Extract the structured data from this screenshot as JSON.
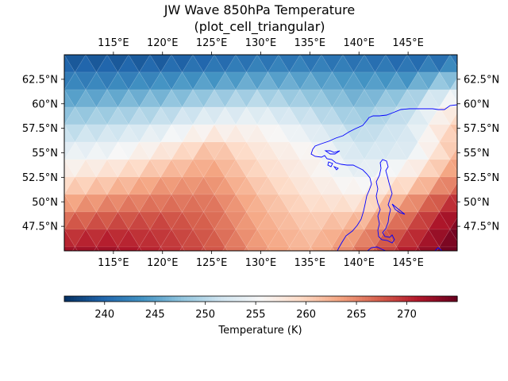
{
  "chart_data": {
    "type": "heatmap",
    "title": "JW Wave 850hPa Temperature",
    "subtitle": "(plot_cell_triangular)",
    "x_axis": {
      "range": [
        110,
        150
      ],
      "ticks": [
        115,
        120,
        125,
        130,
        135,
        140,
        145
      ],
      "tick_labels": [
        "115°E",
        "120°E",
        "125°E",
        "130°E",
        "135°E",
        "140°E",
        "145°E"
      ]
    },
    "y_axis": {
      "range": [
        45,
        65
      ],
      "ticks": [
        47.5,
        50,
        52.5,
        55,
        57.5,
        60,
        62.5
      ],
      "tick_labels": [
        "47.5°N",
        "50°N",
        "52.5°N",
        "55°N",
        "57.5°N",
        "60°N",
        "62.5°N"
      ]
    },
    "colorbar": {
      "label": "Temperature (K)",
      "range": [
        236,
        275
      ],
      "ticks": [
        240,
        245,
        250,
        255,
        260,
        265,
        270
      ],
      "tick_labels": [
        "240",
        "245",
        "250",
        "255",
        "260",
        "265",
        "270"
      ],
      "colormap": [
        "#053061",
        "#2166ac",
        "#4393c3",
        "#92c5de",
        "#d1e5f0",
        "#f7f7f7",
        "#fddbc7",
        "#f4a582",
        "#d6604d",
        "#b2182b",
        "#67001f"
      ]
    },
    "grid": false,
    "coastline_color": "#0000ff",
    "field_samples": {
      "x": [
        110,
        115,
        120,
        125,
        130,
        135,
        140,
        145,
        150
      ],
      "y": [
        45,
        47.5,
        50,
        52.5,
        55,
        57.5,
        60,
        62.5,
        65
      ],
      "values": [
        [
          272,
          272,
          270,
          268,
          264,
          262,
          266,
          271,
          275
        ],
        [
          268,
          269,
          269,
          267,
          263,
          261,
          263,
          268,
          274
        ],
        [
          263,
          265,
          266,
          266,
          262,
          259,
          258,
          264,
          270
        ],
        [
          258,
          260,
          263,
          264,
          260,
          257,
          254,
          258,
          265
        ],
        [
          254,
          255,
          258,
          262,
          258,
          256,
          252,
          253,
          262
        ],
        [
          250,
          251,
          253,
          256,
          256,
          253,
          250,
          252,
          261
        ],
        [
          246,
          247,
          248,
          250,
          251,
          249,
          247,
          250,
          257
        ],
        [
          242,
          242,
          243,
          244,
          245,
          245,
          244,
          244,
          248
        ],
        [
          238,
          238,
          238,
          239,
          240,
          240,
          240,
          239,
          239
        ]
      ]
    }
  }
}
